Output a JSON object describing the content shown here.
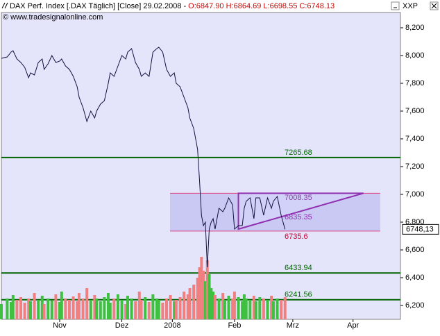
{
  "chart_data": {
    "type": "line",
    "title": "DAX Perf. Index [.DAX  Täglich] [Close] 29.02.2008 -",
    "ohlc": "O:6847.90 H:6864.69 L:6698.55 C:6748.13",
    "subtitle": "© www.tradesignalonline.com",
    "symbol_label": "XXP",
    "x": [
      0,
      3,
      5,
      6,
      8,
      10,
      12,
      14,
      15,
      17,
      19,
      21,
      22,
      24,
      26,
      28,
      30,
      31,
      33,
      35,
      37,
      39,
      40,
      42,
      44,
      46,
      48,
      49,
      51,
      53,
      55,
      56,
      58,
      60,
      62,
      64,
      65,
      67,
      69,
      71,
      72,
      74,
      76,
      78,
      80,
      81,
      83,
      85,
      87,
      89,
      90,
      92,
      94,
      96,
      97,
      99,
      101,
      102,
      103,
      104,
      105,
      106,
      107,
      108,
      109,
      110,
      112,
      114,
      115,
      117,
      119,
      120,
      122,
      124,
      125,
      126,
      128,
      130,
      131,
      133,
      135,
      137,
      139,
      140,
      142,
      144,
      146
    ],
    "series": [
      {
        "color": "#101040",
        "values": [
          7980,
          7990,
          8025,
          8035,
          7975,
          7950,
          7915,
          7840,
          7875,
          7860,
          7950,
          7975,
          7900,
          7940,
          8000,
          7950,
          7960,
          7975,
          7925,
          7900,
          7850,
          7775,
          7700,
          7625,
          7525,
          7600,
          7550,
          7600,
          7650,
          7675,
          7800,
          7875,
          7850,
          7925,
          8000,
          7975,
          8025,
          8050,
          7950,
          7900,
          7850,
          7875,
          7850,
          8025,
          8050,
          8060,
          8025,
          7900,
          7850,
          7875,
          7800,
          7775,
          7700,
          7625,
          7550,
          7475,
          7325,
          7100,
          6850,
          6775,
          6800,
          6475,
          6750,
          6800,
          6825,
          6750,
          6900,
          6875,
          6900,
          6975,
          6925,
          6750,
          6775,
          6775,
          6900,
          6950,
          6975,
          6825,
          6975,
          6975,
          6850,
          6975,
          6900,
          6950,
          6985,
          6850,
          6748.13
        ]
      },
      {
        "type": "volume",
        "up_color": "#40c040",
        "down_color": "#f08080",
        "values": [
          22,
          30,
          25,
          35,
          28,
          32,
          24,
          30,
          26,
          38,
          28,
          34,
          22,
          30,
          27,
          36,
          25,
          40,
          30,
          28,
          33,
          26,
          38,
          30,
          45,
          28,
          35,
          30,
          26,
          32,
          38,
          24,
          30,
          36,
          28,
          22,
          34,
          30,
          26,
          40,
          28,
          32,
          25,
          36,
          30,
          28,
          24,
          30,
          35,
          26,
          28,
          32,
          40,
          36,
          45,
          50,
          60,
          75,
          90,
          70,
          55,
          85,
          65,
          45,
          40,
          35,
          30,
          38,
          28,
          34,
          30,
          40,
          32,
          26,
          36,
          30,
          28,
          34,
          26,
          32,
          30,
          28,
          34,
          26,
          30,
          28,
          32
        ]
      }
    ],
    "volume_lim": [
      0,
      100
    ],
    "xlim": [
      0,
      205.4
    ],
    "xticks": [
      {
        "value": 30,
        "label": "Nov"
      },
      {
        "value": 62,
        "label": "Dez"
      },
      {
        "value": 88,
        "label": "2008"
      },
      {
        "value": 120,
        "label": "Feb"
      },
      {
        "value": 150,
        "label": "Mrz"
      },
      {
        "value": 181,
        "label": "Apr"
      }
    ],
    "ylim": [
      6100,
      8310
    ],
    "yticks": [
      {
        "value": 6200,
        "label": "6,200"
      },
      {
        "value": 6400,
        "label": "6,400"
      },
      {
        "value": 6600,
        "label": "6,600"
      },
      {
        "value": 6800,
        "label": "6,800"
      },
      {
        "value": 7000,
        "label": "7,000"
      },
      {
        "value": 7200,
        "label": "7,200"
      },
      {
        "value": 7400,
        "label": "7,400"
      },
      {
        "value": 7600,
        "label": "7,600"
      },
      {
        "value": 7800,
        "label": "7,800"
      },
      {
        "value": 8000,
        "label": "8,000"
      },
      {
        "value": 8200,
        "label": "8,200"
      }
    ],
    "levels": [
      {
        "value": 7265.68,
        "color": "#006400"
      },
      {
        "value": 6433.94,
        "color": "#006400"
      },
      {
        "value": 6241.56,
        "color": "#006400"
      }
    ],
    "box": {
      "x": [
        86.8,
        195
      ],
      "top": 7008.35,
      "bottom": 6735.6,
      "top_color": "#8040a0",
      "bottom_color": "#c00030",
      "line_color": "#e04080",
      "fill": "#b8b8f0"
    },
    "triangle": {
      "x": [
        122,
        122,
        186.4
      ],
      "y": [
        7008.35,
        6750,
        7008.35
      ],
      "label": 6835.35,
      "color": "#9030b0"
    },
    "last_price": {
      "value": 6748.13,
      "label": "6748,13"
    }
  }
}
